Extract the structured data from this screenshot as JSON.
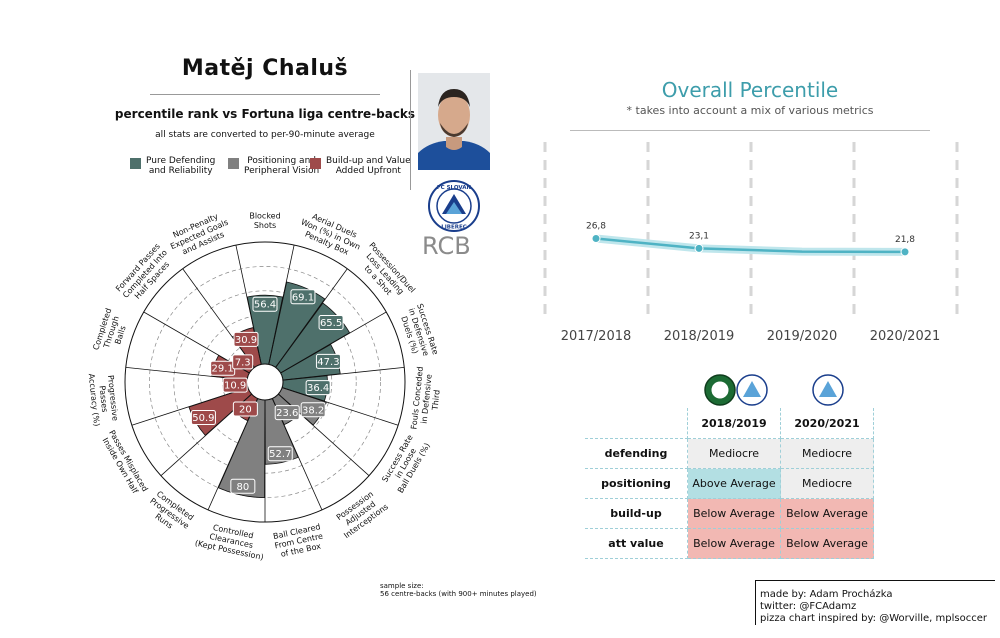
{
  "header": {
    "player_name": "Matěj Chaluš",
    "subtitle": "percentile rank vs Fortuna liga centre-backs",
    "note": "all stats are converted to per-90-minute average",
    "position": "RCB",
    "badge_text_top": "FC SLOVAN",
    "badge_text_bottom": "LIBEREC"
  },
  "legend": [
    {
      "label_line1": "Pure Defending",
      "label_line2": "and Reliability",
      "color": "#4e706b"
    },
    {
      "label_line1": "Positioning and",
      "label_line2": "Peripheral Vision",
      "color": "#808080"
    },
    {
      "label_line1": "Build-up and Value",
      "label_line2": "Added Upfront",
      "color": "#9e4a4a"
    }
  ],
  "colors": {
    "defending": "#4e706b",
    "positioning": "#808080",
    "buildup": "#9e4a4a",
    "line": "#4fb3c4",
    "accent": "#3d9dab"
  },
  "chart_data": [
    {
      "type": "pizza",
      "title": "Matěj Chaluš",
      "range": [
        0,
        100
      ],
      "slices": [
        {
          "label": [
            "Blocked",
            "Shots"
          ],
          "value": 56.4,
          "group": "defending"
        },
        {
          "label": [
            "Aerial Duels",
            "Won (%) in Own",
            "Penalty Box"
          ],
          "value": 69.1,
          "group": "defending"
        },
        {
          "label": [
            "Possession/Duel",
            "Loss Leading",
            "to a Shot"
          ],
          "value": 65.5,
          "group": "defending"
        },
        {
          "label": [
            "Success Rate",
            "in Defensive",
            "Duels (%)"
          ],
          "value": 47.3,
          "group": "defending"
        },
        {
          "label": [
            "Fouls Conceded",
            "in Defensive",
            "Third"
          ],
          "value": 36.4,
          "group": "defending"
        },
        {
          "label": [
            "Success Rate",
            "in Loose",
            "Ball Duels (%)"
          ],
          "value": 38.2,
          "group": "positioning"
        },
        {
          "label": [
            "Possession",
            "Adjusted",
            "Interceptions"
          ],
          "value": 23.6,
          "group": "positioning"
        },
        {
          "label": [
            "Ball Cleared",
            "From Centre",
            "of the Box"
          ],
          "value": 52.7,
          "group": "positioning"
        },
        {
          "label": [
            "Controlled",
            "Clearances",
            "(Kept Possession)"
          ],
          "value": 80,
          "group": "positioning"
        },
        {
          "label": [
            "Completed",
            "Progressive",
            "Runs"
          ],
          "value": 20,
          "group": "buildup"
        },
        {
          "label": [
            "Passes Misplaced",
            "Inside Own Half"
          ],
          "value": 50.9,
          "group": "buildup"
        },
        {
          "label": [
            "Progressive",
            "Passes",
            "Accuracy (%)"
          ],
          "value": 10.9,
          "group": "buildup"
        },
        {
          "label": [
            "Completed",
            "Through",
            "Balls"
          ],
          "value": 29.1,
          "group": "buildup"
        },
        {
          "label": [
            "Forward Passes",
            "Completed Into",
            "Half Spaces"
          ],
          "value": 7.3,
          "group": "buildup"
        },
        {
          "label": [
            "Non-Penalty",
            "Expected Goals",
            "and Assists"
          ],
          "value": 30.9,
          "group": "buildup"
        }
      ]
    },
    {
      "type": "line",
      "title": "Overall Percentile",
      "subtitle": "* takes into account a mix of various metrics",
      "categories": [
        "2017/2018",
        "2018/2019",
        "2019/2020",
        "2020/2021"
      ],
      "x": [
        0,
        1,
        2,
        3
      ],
      "values_labeled": [
        {
          "x": 0,
          "y": 26.8,
          "label": "26,8"
        },
        {
          "x": 1,
          "y": 23.1,
          "label": "23,1"
        },
        {
          "x": 3,
          "y": 21.8,
          "label": "21,8"
        }
      ],
      "curve": [
        [
          0,
          26.8
        ],
        [
          1,
          23.1
        ],
        [
          2,
          21.9
        ],
        [
          3,
          21.8
        ]
      ],
      "ylim": [
        0,
        60
      ]
    }
  ],
  "table": {
    "columns": [
      "2018/2019",
      "2020/2021"
    ],
    "rows": [
      {
        "label": "defending",
        "values": [
          "Mediocre",
          "Mediocre"
        ]
      },
      {
        "label": "positioning",
        "values": [
          "Above Average",
          "Mediocre"
        ]
      },
      {
        "label": "build-up",
        "values": [
          "Below Average",
          "Below Average"
        ]
      },
      {
        "label": "att value",
        "values": [
          "Below Average",
          "Below Average"
        ]
      }
    ],
    "cell_colors": {
      "Mediocre": "#eeeeee",
      "Above Average": "#b3dfe3",
      "Below Average": "#f2b8b3"
    }
  },
  "sample": {
    "line1": "sample size:",
    "line2": "56 centre-backs (with 900+ minutes played)"
  },
  "credits": {
    "line1": "made by: Adam Procházka",
    "line2": "twitter: @FCAdamz",
    "line3": "pizza chart inspired by: @Worville, mplsoccer"
  }
}
